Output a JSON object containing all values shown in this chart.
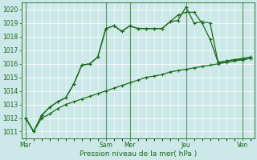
{
  "xlabel": "Pression niveau de la mer( hPa )",
  "background_color": "#cce8e8",
  "grid_color": "#ffffff",
  "line_color": "#1a6b1a",
  "ylim": [
    1010.5,
    1020.5
  ],
  "yticks": [
    1011,
    1012,
    1013,
    1014,
    1015,
    1016,
    1017,
    1018,
    1019,
    1020
  ],
  "x_day_labels": [
    "Mar",
    "Sam",
    "Mer",
    "Jeu",
    "Ven"
  ],
  "x_day_positions": [
    0,
    10,
    13,
    20,
    27
  ],
  "xlim": [
    -0.5,
    28.5
  ],
  "line1_x": [
    0,
    1,
    2,
    3,
    4,
    5,
    6,
    7,
    8,
    9,
    10,
    11,
    12,
    13,
    14,
    15,
    16,
    17,
    18,
    19,
    20,
    21,
    22,
    23,
    24,
    25,
    26,
    27,
    28
  ],
  "line1_y": [
    1012.0,
    1011.0,
    1012.2,
    1012.8,
    1013.2,
    1013.5,
    1014.5,
    1015.9,
    1016.0,
    1016.5,
    1018.6,
    1018.8,
    1018.4,
    1018.8,
    1018.6,
    1018.6,
    1018.6,
    1018.6,
    1019.1,
    1019.2,
    1020.2,
    1019.0,
    1019.1,
    1019.0,
    1016.1,
    1016.2,
    1016.3,
    1016.3,
    1016.4
  ],
  "line2_x": [
    0,
    1,
    2,
    3,
    4,
    5,
    6,
    7,
    8,
    9,
    10,
    11,
    12,
    13,
    14,
    15,
    16,
    17,
    18,
    19,
    20,
    21,
    22,
    23,
    24,
    25,
    26,
    27,
    28
  ],
  "line2_y": [
    1012.0,
    1011.0,
    1012.2,
    1012.8,
    1013.2,
    1013.5,
    1014.5,
    1015.9,
    1016.0,
    1016.5,
    1018.6,
    1018.8,
    1018.4,
    1018.8,
    1018.6,
    1018.6,
    1018.6,
    1018.6,
    1019.1,
    1019.6,
    1019.8,
    1019.8,
    1019.0,
    1017.8,
    1016.1,
    1016.2,
    1016.3,
    1016.4,
    1016.5
  ],
  "line3_x": [
    0,
    1,
    2,
    3,
    4,
    5,
    6,
    7,
    8,
    9,
    10,
    11,
    12,
    13,
    14,
    15,
    16,
    17,
    18,
    19,
    20,
    21,
    22,
    23,
    24,
    25,
    26,
    27,
    28
  ],
  "line3_y": [
    1012.0,
    1011.0,
    1012.0,
    1012.3,
    1012.7,
    1013.0,
    1013.2,
    1013.4,
    1013.6,
    1013.8,
    1014.0,
    1014.2,
    1014.4,
    1014.6,
    1014.8,
    1015.0,
    1015.1,
    1015.2,
    1015.4,
    1015.5,
    1015.6,
    1015.7,
    1015.8,
    1015.9,
    1016.0,
    1016.1,
    1016.2,
    1016.3,
    1016.4
  ]
}
